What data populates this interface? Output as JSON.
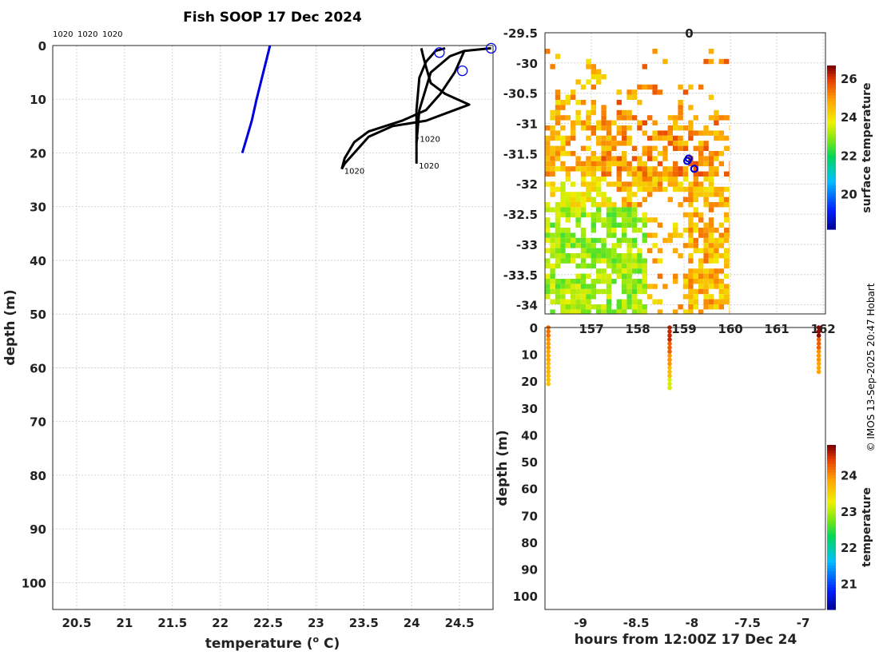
{
  "chart_data": [
    {
      "id": "profile",
      "type": "line",
      "title": "Fish SOOP 17 Dec 2024",
      "xlabel": "temperature (",
      "xlabel_unit_sup": "o",
      "xlabel_unit_tail": " C)",
      "ylabel": "depth (m)",
      "xlim": [
        20.25,
        24.85
      ],
      "ylim": [
        0,
        105
      ],
      "xticks": [
        20.5,
        21,
        21.5,
        22,
        22.5,
        23,
        23.5,
        24,
        24.5
      ],
      "yticks": [
        0,
        10,
        20,
        30,
        40,
        50,
        60,
        70,
        80,
        90,
        100
      ],
      "top_labels": [
        "1020",
        "1020",
        "1020"
      ],
      "series": [
        {
          "name": "blue profile",
          "color": "#0000dd",
          "x": [
            22.52,
            22.45,
            22.38,
            22.33,
            22.28,
            22.23
          ],
          "y": [
            0,
            5,
            10,
            14,
            17,
            20
          ]
        },
        {
          "name": "black profile 1",
          "color": "#000000",
          "x": [
            24.83,
            24.55,
            24.4,
            24.2,
            24.08,
            24.05,
            24.06
          ],
          "y": [
            0.5,
            1,
            2,
            5,
            12,
            18,
            17
          ],
          "end_label": "1020"
        },
        {
          "name": "black profile 2",
          "color": "#000000",
          "x": [
            24.1,
            24.12,
            24.15,
            24.2,
            24.35,
            24.6,
            24.45,
            24.15,
            23.8,
            23.55,
            23.45,
            23.3,
            23.27
          ],
          "y": [
            0.5,
            2,
            4,
            7,
            9,
            11,
            12,
            14,
            15,
            17,
            19,
            22,
            23
          ],
          "end_label": "1020"
        },
        {
          "name": "black profile 3",
          "color": "#000000",
          "x": [
            24.35,
            24.25,
            24.15,
            24.08,
            24.05,
            24.05,
            24.05
          ],
          "y": [
            0.5,
            1,
            3,
            6,
            12,
            18,
            22
          ],
          "end_label": "1020"
        },
        {
          "name": "black profile 4",
          "color": "#000000",
          "x": [
            24.55,
            24.45,
            24.3,
            24.15,
            23.9,
            23.55,
            23.4,
            23.3,
            23.27
          ],
          "y": [
            1,
            5,
            9,
            12,
            14,
            16,
            18,
            21,
            23
          ]
        }
      ],
      "circles": [
        {
          "x": 24.83,
          "y": 0.5
        },
        {
          "x": 24.29,
          "y": 1.3
        },
        {
          "x": 24.53,
          "y": 4.7
        }
      ]
    },
    {
      "id": "map",
      "type": "heatmap",
      "colorbar_label": "surface temperature",
      "colorbar_ticks": [
        20,
        22,
        24,
        26
      ],
      "colorbar_range": [
        18.2,
        26.7
      ],
      "xlim": [
        156.0,
        162.05
      ],
      "ylim": [
        -34.15,
        -29.5
      ],
      "xticks": [
        "157",
        "158",
        "159",
        "160",
        "161",
        "162"
      ],
      "yticks": [
        -29.5,
        -30,
        -30.5,
        -31,
        -31.5,
        -32,
        -32.5,
        -33,
        -33.5,
        -34
      ],
      "data_extent_lon": 159.98,
      "point_label": "0",
      "stations": [
        {
          "lon": 159.1,
          "lat": -31.58
        },
        {
          "lon": 159.07,
          "lat": -31.62
        },
        {
          "lon": 159.22,
          "lat": -31.75
        }
      ]
    },
    {
      "id": "section",
      "type": "scatter",
      "xlabel": "hours from 12:00Z 17 Dec 24",
      "ylabel": "depth (m)",
      "xlim": [
        -9.32,
        -6.8
      ],
      "ylim": [
        0,
        105
      ],
      "xticks": [
        -9,
        -8.5,
        -8,
        -7.5,
        -7
      ],
      "yticks": [
        0,
        10,
        20,
        30,
        40,
        50,
        60,
        70,
        80,
        90,
        100
      ],
      "colorbar_label": "temperature",
      "colorbar_ticks": [
        21,
        22,
        23,
        24
      ],
      "colorbar_range": [
        20.3,
        24.85
      ],
      "casts": [
        {
          "x": -9.29,
          "max_depth": 22,
          "temps": [
            24.2,
            24.0,
            23.9,
            23.8,
            23.7
          ]
        },
        {
          "x": -8.2,
          "max_depth": 23,
          "temps": [
            24.6,
            24.3,
            24.0,
            23.7,
            23.2
          ]
        },
        {
          "x": -6.86,
          "max_depth": 17,
          "temps": [
            24.8,
            24.3,
            24.0,
            23.9
          ]
        }
      ]
    }
  ],
  "credit": "© IMOS 13-Sep-2025 20:47 Hobart"
}
